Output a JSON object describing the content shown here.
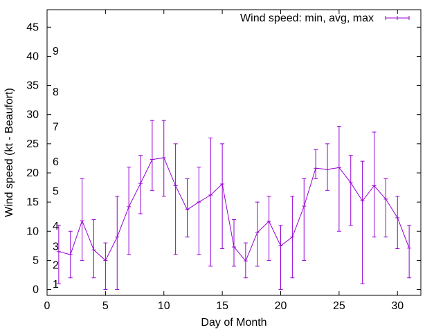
{
  "chart_data": {
    "type": "line",
    "title": "",
    "xlabel": "Day of Month",
    "ylabel": "Wind speed (kt - Beaufort)",
    "xlim": [
      0,
      32
    ],
    "ylim": [
      -1,
      48
    ],
    "xticks": [
      "0",
      "5",
      "10",
      "15",
      "20",
      "25",
      "30"
    ],
    "yticks": [
      "0",
      "5",
      "10",
      "15",
      "20",
      "25",
      "30",
      "35",
      "40",
      "45"
    ],
    "grid": false,
    "legend_position": "top-right",
    "color": "#9400d3",
    "series": [
      {
        "name": "Wind speed: min, avg, max",
        "x": [
          1,
          2,
          3,
          4,
          5,
          6,
          7,
          8,
          9,
          10,
          11,
          12,
          13,
          14,
          15,
          16,
          17,
          18,
          19,
          20,
          21,
          22,
          23,
          24,
          25,
          26,
          27,
          28,
          29,
          30,
          31
        ],
        "avg": [
          6.5,
          6.0,
          11.8,
          6.8,
          5.0,
          9.0,
          14.2,
          18.2,
          22.3,
          22.6,
          17.8,
          13.7,
          15.0,
          16.2,
          18.1,
          7.3,
          4.9,
          9.8,
          11.7,
          7.5,
          9.0,
          14.3,
          20.8,
          20.6,
          20.9,
          18.3,
          15.2,
          17.8,
          15.5,
          12.3,
          7.1
        ],
        "min": [
          1,
          2,
          5,
          2,
          0,
          0,
          6,
          13,
          17,
          16,
          6,
          9,
          6,
          4,
          7,
          4,
          2,
          4,
          5,
          0,
          2,
          5,
          19,
          17,
          10,
          11,
          1,
          9,
          9,
          7,
          2
        ],
        "max": [
          11,
          10,
          19,
          12,
          8,
          16,
          21,
          23,
          29,
          29,
          25,
          19,
          21,
          26,
          25,
          12,
          8,
          15,
          16,
          11,
          16,
          19,
          24,
          25,
          28,
          23,
          22,
          27,
          19,
          16,
          11
        ]
      }
    ],
    "beaufort_labels": [
      {
        "label": "1",
        "y": 1.0
      },
      {
        "label": "2",
        "y": 4.3
      },
      {
        "label": "3",
        "y": 7.5
      },
      {
        "label": "4",
        "y": 11.0
      },
      {
        "label": "5",
        "y": 17.0
      },
      {
        "label": "6",
        "y": 22.0
      },
      {
        "label": "7",
        "y": 28.0
      },
      {
        "label": "8",
        "y": 34.0
      },
      {
        "label": "9",
        "y": 41.0
      }
    ]
  }
}
